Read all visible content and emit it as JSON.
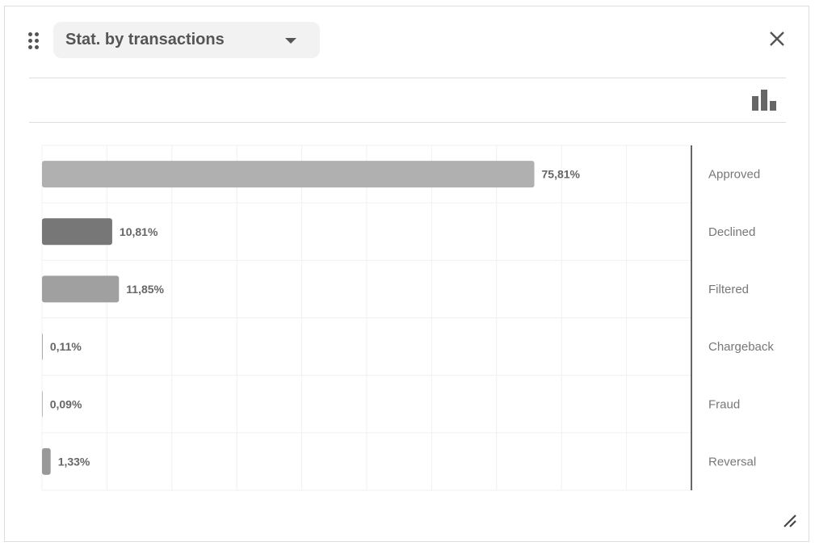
{
  "widget": {
    "title": "Stat. by transactions",
    "icons": [
      "drag-handle-icon",
      "chevron-down-icon",
      "close-icon",
      "bar-chart-icon",
      "resize-icon"
    ]
  },
  "chart_data": {
    "type": "bar",
    "orientation": "horizontal",
    "categories": [
      "Approved",
      "Declined",
      "Filtered",
      "Chargeback",
      "Fraud",
      "Reversal"
    ],
    "values": [
      75.81,
      10.81,
      11.85,
      0.11,
      0.09,
      1.33
    ],
    "labels": [
      "75,81%",
      "10,81%",
      "11,85%",
      "0,11%",
      "0,09%",
      "1,33%"
    ],
    "colors": [
      "#b0b0b0",
      "#777777",
      "#a0a0a0",
      "#a0a0a0",
      "#a0a0a0",
      "#999999"
    ],
    "xlim": [
      0,
      100
    ],
    "grid": true,
    "category_axis": "right"
  }
}
